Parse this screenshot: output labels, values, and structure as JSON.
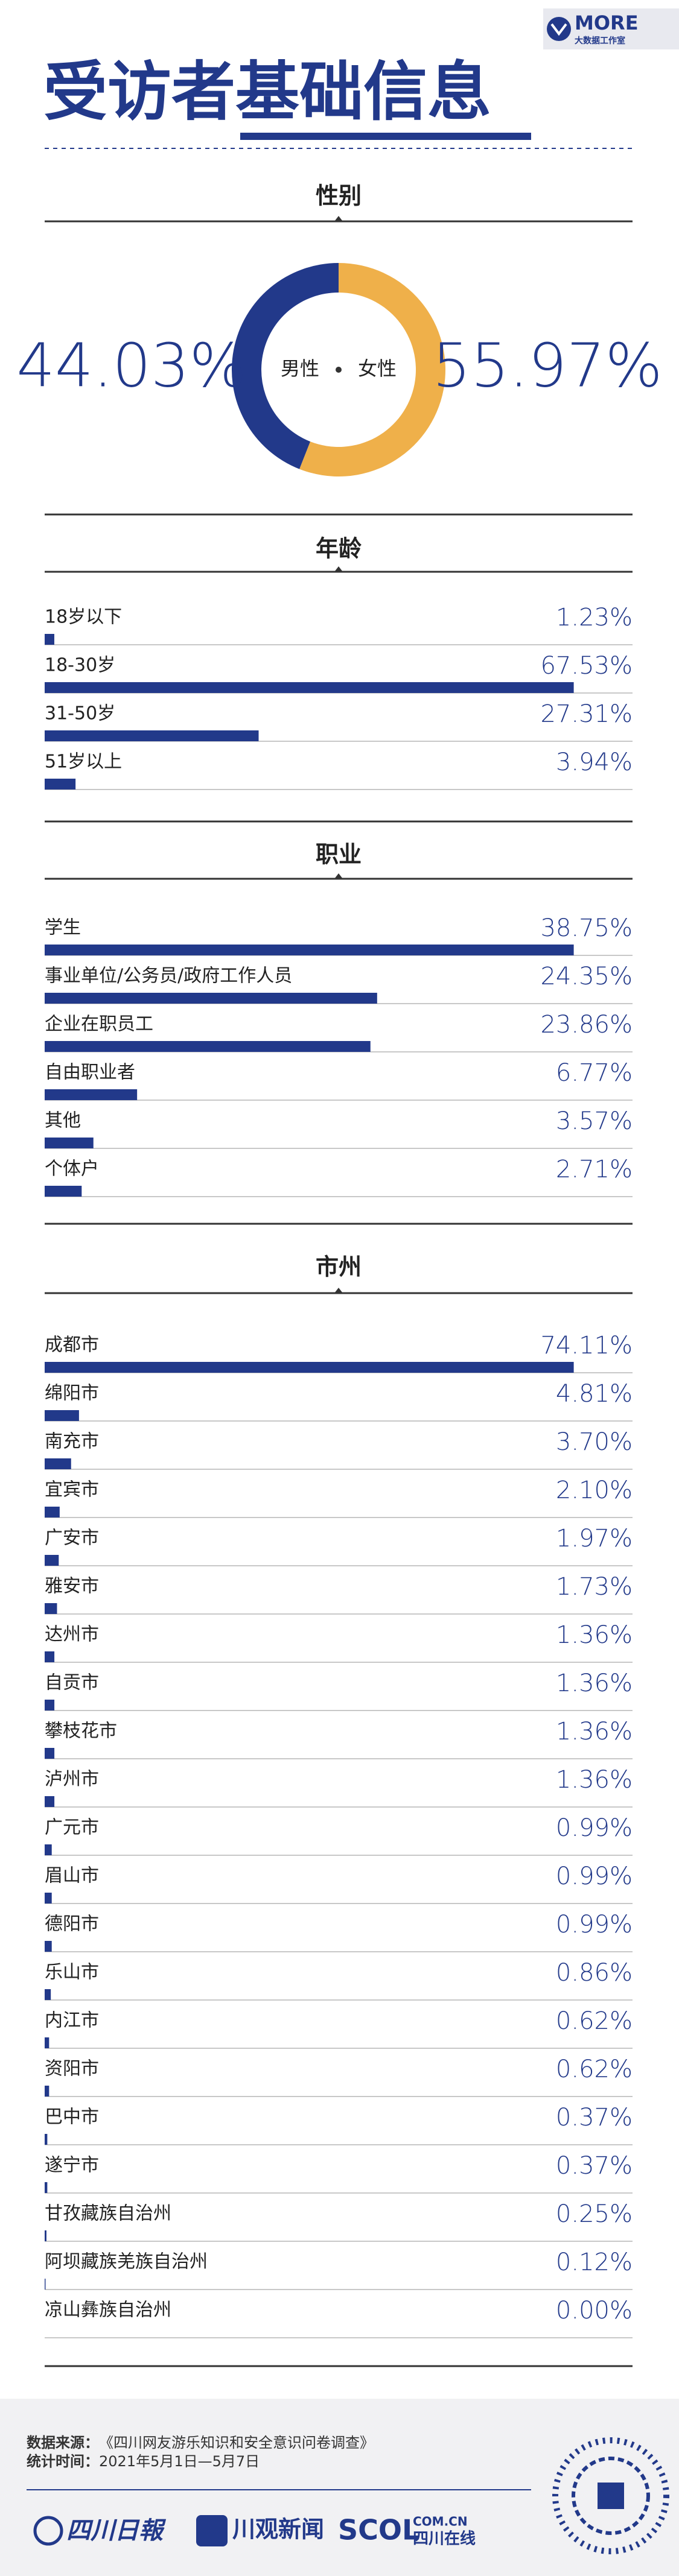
{
  "header": {
    "title": "受访者基础信息",
    "logo": "MORE",
    "logo_sub": "大数据工作室"
  },
  "chart_data": [
    {
      "type": "pie",
      "title": "性别",
      "categories": [
        "男性",
        "女性"
      ],
      "values": [
        44.03,
        55.97
      ],
      "value_labels": [
        "44.03%",
        "55.97%"
      ],
      "colors": [
        "#22398a",
        "#efb04a"
      ]
    },
    {
      "type": "bar",
      "title": "年龄",
      "categories": [
        "18岁以下",
        "18-30岁",
        "31-50岁",
        "51岁以上"
      ],
      "values": [
        1.23,
        67.53,
        27.31,
        3.94
      ],
      "value_labels": [
        "1.23%",
        "67.53%",
        "27.31%",
        "3.94%"
      ],
      "color": "#22398a"
    },
    {
      "type": "bar",
      "title": "职业",
      "categories": [
        "学生",
        "事业单位/公务员/政府工作人员",
        "企业在职员工",
        "自由职业者",
        "其他",
        "个体户"
      ],
      "values": [
        38.75,
        24.35,
        23.86,
        6.77,
        3.57,
        2.71
      ],
      "value_labels": [
        "38.75%",
        "24.35%",
        "23.86%",
        "6.77%",
        "3.57%",
        "2.71%"
      ],
      "color": "#22398a"
    },
    {
      "type": "bar",
      "title": "市州",
      "categories": [
        "成都市",
        "绵阳市",
        "南充市",
        "宜宾市",
        "广安市",
        "雅安市",
        "达州市",
        "自贡市",
        "攀枝花市",
        "泸州市",
        "广元市",
        "眉山市",
        "德阳市",
        "乐山市",
        "内江市",
        "资阳市",
        "巴中市",
        "遂宁市",
        "甘孜藏族自治州",
        "阿坝藏族羌族自治州",
        "凉山彝族自治州"
      ],
      "values": [
        74.11,
        4.81,
        3.7,
        2.1,
        1.97,
        1.73,
        1.36,
        1.36,
        1.36,
        1.36,
        0.99,
        0.99,
        0.99,
        0.86,
        0.62,
        0.62,
        0.37,
        0.37,
        0.25,
        0.12,
        0.0
      ],
      "value_labels": [
        "74.11%",
        "4.81%",
        "3.70%",
        "2.10%",
        "1.97%",
        "1.73%",
        "1.36%",
        "1.36%",
        "1.36%",
        "1.36%",
        "0.99%",
        "0.99%",
        "0.99%",
        "0.86%",
        "0.62%",
        "0.62%",
        "0.37%",
        "0.37%",
        "0.25%",
        "0.12%",
        "0.00%"
      ],
      "color": "#22398a"
    }
  ],
  "footer": {
    "source_label": "数据来源：",
    "source": "《四川网友游乐知识和安全意识问卷调查》",
    "period_label": "统计时间：",
    "period": "2021年5月1日—5月7日",
    "logos": [
      "四川日報",
      "川观新闻",
      "SCOL",
      "COM.CN",
      "四川在线"
    ]
  }
}
